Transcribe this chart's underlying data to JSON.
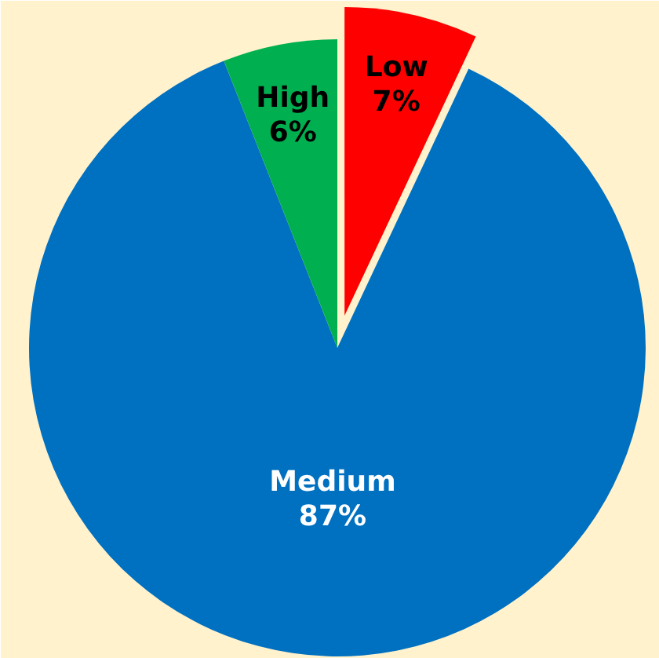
{
  "chart_data": {
    "type": "pie",
    "categories": [
      "Low",
      "Medium",
      "High"
    ],
    "values": [
      7,
      87,
      6
    ],
    "colors": [
      "#ff0000",
      "#0070c0",
      "#00b050"
    ],
    "value_labels": [
      "7%",
      "87%",
      "6%"
    ]
  }
}
